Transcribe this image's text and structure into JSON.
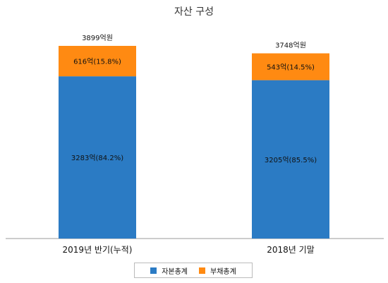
{
  "chart_data": {
    "type": "bar",
    "stacked": true,
    "title": "자산 구성",
    "categories": [
      "2019년 반기(누적)",
      "2018년 기말"
    ],
    "series": [
      {
        "name": "자본총계",
        "color": "#2b7bc4",
        "values": [
          3283,
          3205
        ],
        "labels": [
          "3283억(84.2%)",
          "3205억(85.5%)"
        ]
      },
      {
        "name": "부채총계",
        "color": "#ff8a12",
        "values": [
          616,
          543
        ],
        "labels": [
          "616억(15.8%)",
          "543억(14.5%)"
        ]
      }
    ],
    "totals": [
      3899,
      3748
    ],
    "total_labels": [
      "3899억원",
      "3748억원"
    ],
    "legend_position": "bottom",
    "grid": false
  }
}
